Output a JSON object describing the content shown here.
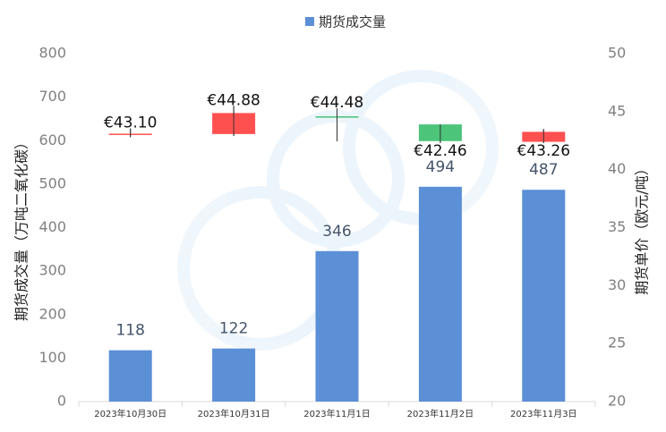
{
  "chart_data": {
    "type": "bar",
    "categories": [
      "2023年10月30日",
      "2023年10月31日",
      "2023年11月1日",
      "2023年11月2日",
      "2023年11月3日"
    ],
    "series": [
      {
        "name": "期货成交量",
        "color": "#5b8fd6",
        "values": [
          118,
          122,
          346,
          494,
          487
        ]
      }
    ],
    "ylabel": "期货成交量（万吨二氧化碳）",
    "y2label": "期货单价（欧元/吨）",
    "ylim": [
      0,
      800
    ],
    "yticks": [
      0,
      100,
      200,
      300,
      400,
      500,
      600,
      700,
      800
    ],
    "y2lim": [
      20,
      50
    ],
    "y2ticks": [
      20,
      25,
      30,
      35,
      40,
      45,
      50
    ],
    "candlestick": {
      "type": "candlestick",
      "axis": "y2",
      "up_color": "#ff5050",
      "down_color": "#4cc47a",
      "open": [
        43.1,
        43.07,
        44.6,
        43.9,
        42.4
      ],
      "high": [
        43.55,
        45.5,
        45.3,
        43.9,
        43.5
      ],
      "low": [
        42.8,
        42.9,
        42.45,
        42.3,
        42.3
      ],
      "close": [
        43.1,
        44.88,
        44.48,
        42.46,
        43.26
      ],
      "value_labels": [
        "€43.10",
        "€44.88",
        "€44.48",
        "€42.46",
        "€43.26"
      ]
    },
    "legend": "top"
  }
}
